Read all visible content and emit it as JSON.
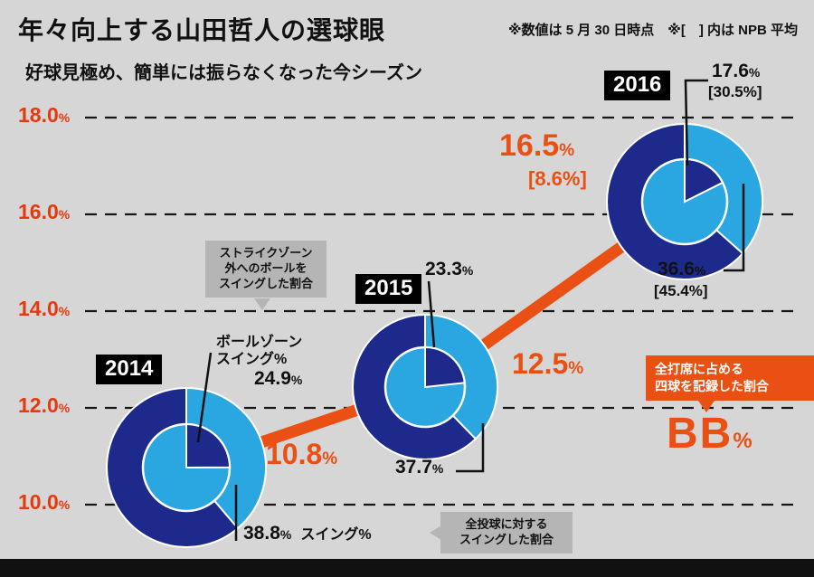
{
  "header": {
    "title": "年々向上する山田哲人の選球眼",
    "subtitle": "好球見極め、簡単には振らなくなった今シーズン",
    "note": "※数値は 5 月 30 日時点　※[　] 内は NPB 平均"
  },
  "axis": {
    "ticks": [
      "18.0",
      "16.0",
      "14.0",
      "12.0",
      "10.0"
    ],
    "unit": "%"
  },
  "years": [
    {
      "year": "2014",
      "bb": "10.8",
      "ballzone": "24.9",
      "swing": "38.8"
    },
    {
      "year": "2015",
      "bb": "12.5",
      "ballzone": "23.3",
      "swing": "37.7"
    },
    {
      "year": "2016",
      "bb": "16.5",
      "bb_npb": "[8.6%]",
      "ballzone": "17.6",
      "ballzone_npb": "[30.5%]",
      "swing": "36.6",
      "swing_npb": "[45.4%]"
    }
  ],
  "captions": {
    "ballzone": "ボールゾーン\nスイング%",
    "swing": "スイング%",
    "strikezone_box": "ストライクゾーン\n外へのボールを\nスイングした割合",
    "swing_box": "全投球に対する\nスイングした割合",
    "bb_box": "全打席に占める\n四球を記録した割合",
    "bb_big": "BB"
  },
  "colors": {
    "navy": "#1d2a8c",
    "light_blue": "#2aa7e0",
    "orange": "#ea5014",
    "axis_red": "#e8380d",
    "gray_box": "#b5b5b5",
    "black": "#111111",
    "background": "#d6d6d6"
  },
  "chart_data": {
    "type": "line",
    "title": "年々向上する山田哲人の選球眼",
    "subtitle": "好球見極め、簡単には振らなくなった今シーズン",
    "note": "数値は5月30日時点、[ ]内はNPB平均",
    "x": [
      "2014",
      "2015",
      "2016"
    ],
    "ylabel": "BB%（全打席に占める四球を記録した割合）",
    "ylim": [
      10,
      18
    ],
    "yticks": [
      10.0,
      12.0,
      14.0,
      16.0,
      18.0
    ],
    "grid": true,
    "series": [
      {
        "name": "BB%（全打席に占める四球を記録した割合）",
        "values": [
          10.8,
          12.5,
          16.5
        ],
        "npb_average": [
          null,
          null,
          8.6
        ],
        "color": "#ea5014"
      },
      {
        "name": "ボールゾーンスイング%（ストライクゾーン外へのボールをスイングした割合）",
        "values": [
          24.9,
          23.3,
          17.6
        ],
        "npb_average": [
          null,
          null,
          30.5
        ],
        "color": "#1d2a8c"
      },
      {
        "name": "スイング%（全投球に対するスイングした割合）",
        "values": [
          38.8,
          37.7,
          36.6
        ],
        "npb_average": [
          null,
          null,
          45.4
        ],
        "color": "#2aa7e0"
      }
    ]
  }
}
